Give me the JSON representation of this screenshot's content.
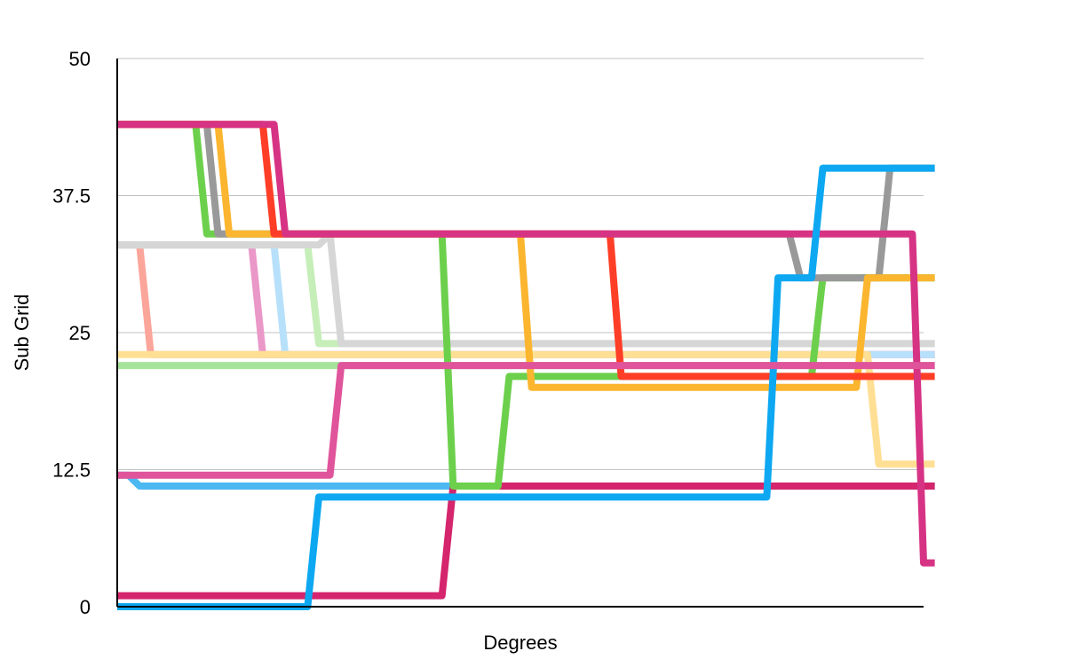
{
  "chart_data": {
    "type": "line",
    "title": "",
    "xlabel": "Degrees",
    "ylabel": "Sub Grid",
    "ylim": [
      0,
      50
    ],
    "xlim": [
      0,
      72
    ],
    "yticks": [
      "0",
      "12.5",
      "25",
      "37.5",
      "50"
    ],
    "grid": "horizontal",
    "legend": "none",
    "series": [
      {
        "color": "#4cb8f2",
        "values": [
          12,
          12,
          11,
          11,
          11,
          11,
          11,
          11,
          11,
          11,
          11,
          11,
          11,
          11,
          11,
          11,
          11,
          11,
          11,
          11,
          11,
          11,
          11,
          11,
          11,
          11,
          11,
          11,
          11,
          11,
          11,
          11,
          11,
          11,
          11,
          11,
          11,
          11,
          11,
          11,
          11,
          11,
          11,
          11,
          11,
          11,
          11,
          11,
          11,
          11,
          11,
          11,
          11,
          11,
          11,
          11,
          11,
          11,
          11,
          11,
          11,
          11,
          11,
          11,
          11,
          11,
          11,
          11,
          11,
          11,
          11,
          11,
          11,
          11
        ]
      },
      {
        "color": "#d4256d",
        "values": [
          1,
          1,
          1,
          1,
          1,
          1,
          1,
          1,
          1,
          1,
          1,
          1,
          1,
          1,
          1,
          1,
          1,
          1,
          1,
          1,
          1,
          1,
          1,
          1,
          1,
          1,
          1,
          1,
          1,
          1,
          11,
          11,
          11,
          11,
          11,
          11,
          11,
          11,
          11,
          11,
          11,
          11,
          11,
          11,
          11,
          11,
          11,
          11,
          11,
          11,
          11,
          11,
          11,
          11,
          11,
          11,
          11,
          11,
          11,
          11,
          11,
          11,
          11,
          11,
          11,
          11,
          11,
          11,
          11,
          11,
          11,
          11,
          11,
          11
        ]
      },
      {
        "color": "#fca59a",
        "values": [
          33,
          33,
          33,
          23,
          23,
          23,
          23,
          23,
          23,
          23,
          23,
          23,
          23,
          23,
          23,
          23,
          23,
          23,
          23,
          23,
          23,
          23,
          23,
          23,
          23,
          23,
          23,
          23,
          23,
          23,
          23,
          23,
          23,
          23,
          23,
          23,
          23,
          23,
          23,
          23,
          23,
          23,
          23,
          23,
          23,
          23,
          23,
          23,
          23,
          23,
          23,
          23,
          23,
          23,
          23,
          23,
          23,
          23,
          23,
          23,
          23,
          23,
          23,
          23,
          23,
          23,
          23,
          23,
          23,
          23,
          23,
          23,
          23,
          23
        ]
      },
      {
        "color": "#ea98c8",
        "values": [
          33,
          33,
          33,
          33,
          33,
          33,
          33,
          33,
          33,
          33,
          33,
          33,
          33,
          23,
          23,
          23,
          23,
          23,
          23,
          23,
          23,
          23,
          23,
          23,
          23,
          23,
          23,
          23,
          23,
          23,
          23,
          23,
          23,
          23,
          23,
          23,
          23,
          23,
          23,
          23,
          23,
          23,
          23,
          23,
          23,
          23,
          23,
          23,
          23,
          23,
          23,
          23,
          23,
          23,
          23,
          23,
          23,
          23,
          23,
          23,
          23,
          23,
          23,
          23,
          23,
          23,
          23,
          23,
          23,
          23,
          23,
          23,
          23,
          23
        ]
      },
      {
        "color": "#b7e0fb",
        "values": [
          33,
          33,
          33,
          33,
          33,
          33,
          33,
          33,
          33,
          33,
          33,
          33,
          33,
          33,
          33,
          23,
          23,
          23,
          23,
          23,
          23,
          23,
          23,
          23,
          23,
          23,
          23,
          23,
          23,
          23,
          23,
          23,
          23,
          23,
          23,
          23,
          23,
          23,
          23,
          23,
          23,
          23,
          23,
          23,
          23,
          23,
          23,
          23,
          23,
          23,
          23,
          23,
          23,
          23,
          23,
          23,
          23,
          23,
          23,
          23,
          23,
          23,
          23,
          23,
          23,
          23,
          23,
          23,
          23,
          23,
          23,
          23,
          23,
          23
        ]
      },
      {
        "color": "#c6eeb8",
        "values": [
          33,
          33,
          33,
          33,
          33,
          33,
          33,
          33,
          33,
          33,
          33,
          33,
          33,
          33,
          33,
          33,
          33,
          33,
          24,
          24,
          24,
          24,
          24,
          24,
          24,
          24,
          24,
          24,
          24,
          24,
          24,
          24,
          24,
          24,
          24,
          24,
          24,
          24,
          24,
          24,
          24,
          24,
          24,
          24,
          24,
          24,
          24,
          24,
          24,
          24,
          24,
          24,
          24,
          24,
          24,
          24,
          24,
          24,
          24,
          24,
          24,
          24,
          24,
          24,
          24,
          24,
          24,
          24,
          24,
          24,
          24,
          24,
          24,
          24
        ]
      },
      {
        "color": "#d6d6d6",
        "values": [
          33,
          33,
          33,
          33,
          33,
          33,
          33,
          33,
          33,
          33,
          33,
          33,
          33,
          33,
          33,
          33,
          33,
          33,
          33,
          34,
          24,
          24,
          24,
          24,
          24,
          24,
          24,
          24,
          24,
          24,
          24,
          24,
          24,
          24,
          24,
          24,
          24,
          24,
          24,
          24,
          24,
          24,
          24,
          24,
          24,
          24,
          24,
          24,
          24,
          24,
          24,
          24,
          24,
          24,
          24,
          24,
          24,
          24,
          24,
          24,
          24,
          24,
          24,
          24,
          24,
          24,
          24,
          24,
          24,
          24,
          24,
          24,
          24,
          24
        ]
      },
      {
        "color": "#ffdf94",
        "values": [
          23,
          23,
          23,
          23,
          23,
          23,
          23,
          23,
          23,
          23,
          23,
          23,
          23,
          23,
          23,
          23,
          23,
          23,
          23,
          23,
          23,
          23,
          23,
          23,
          23,
          23,
          23,
          23,
          23,
          23,
          23,
          23,
          23,
          23,
          23,
          23,
          23,
          23,
          23,
          23,
          23,
          23,
          23,
          23,
          23,
          23,
          23,
          23,
          23,
          23,
          23,
          23,
          23,
          23,
          23,
          23,
          23,
          23,
          23,
          23,
          23,
          23,
          23,
          23,
          23,
          23,
          23,
          23,
          13,
          13,
          13,
          13,
          13,
          13
        ]
      },
      {
        "color": "#a6e39a",
        "values": [
          22,
          22,
          22,
          22,
          22,
          22,
          22,
          22,
          22,
          22,
          22,
          22,
          22,
          22,
          22,
          22,
          22,
          22,
          22,
          22,
          22,
          22,
          22,
          22,
          22,
          22,
          22,
          22,
          22,
          22,
          22,
          22,
          22,
          22,
          22,
          22,
          22,
          22,
          22,
          22,
          22,
          22,
          22,
          22,
          22,
          22,
          22,
          22,
          22,
          22,
          22,
          22,
          22,
          22,
          22,
          22,
          22,
          22,
          22,
          22,
          22,
          22,
          22,
          22,
          22,
          22,
          22,
          22,
          22,
          22,
          22,
          22,
          22,
          22
        ]
      },
      {
        "color": "#6cd04c",
        "values": [
          44,
          44,
          44,
          44,
          44,
          44,
          44,
          44,
          34,
          34,
          34,
          34,
          34,
          34,
          34,
          34,
          34,
          34,
          34,
          34,
          34,
          34,
          34,
          34,
          34,
          34,
          34,
          34,
          34,
          34,
          11,
          11,
          11,
          11,
          11,
          21,
          21,
          21,
          21,
          21,
          21,
          21,
          21,
          21,
          21,
          21,
          21,
          21,
          21,
          21,
          21,
          21,
          21,
          21,
          21,
          21,
          21,
          21,
          21,
          21,
          21,
          21,
          21,
          30,
          30,
          30,
          30,
          30,
          30,
          30,
          30,
          30,
          30,
          30
        ]
      },
      {
        "color": "#999999",
        "values": [
          44,
          44,
          44,
          44,
          44,
          44,
          44,
          44,
          44,
          34,
          34,
          34,
          34,
          34,
          34,
          34,
          34,
          34,
          34,
          34,
          34,
          34,
          34,
          34,
          34,
          34,
          34,
          34,
          34,
          34,
          34,
          34,
          34,
          34,
          34,
          34,
          34,
          34,
          34,
          34,
          34,
          34,
          34,
          34,
          34,
          34,
          34,
          34,
          34,
          34,
          34,
          34,
          34,
          34,
          34,
          34,
          34,
          34,
          34,
          34,
          34,
          30,
          30,
          30,
          30,
          30,
          30,
          30,
          30,
          40,
          40,
          40,
          40,
          40
        ]
      },
      {
        "color": "#fbb52f",
        "values": [
          44,
          44,
          44,
          44,
          44,
          44,
          44,
          44,
          44,
          44,
          34,
          34,
          34,
          34,
          34,
          34,
          34,
          34,
          34,
          34,
          34,
          34,
          34,
          34,
          34,
          34,
          34,
          34,
          34,
          34,
          34,
          34,
          34,
          34,
          34,
          34,
          34,
          20,
          20,
          20,
          20,
          20,
          20,
          20,
          20,
          20,
          20,
          20,
          20,
          20,
          20,
          20,
          20,
          20,
          20,
          20,
          20,
          20,
          20,
          20,
          20,
          20,
          20,
          20,
          20,
          20,
          20,
          30,
          30,
          30,
          30,
          30,
          30,
          30
        ]
      },
      {
        "color": "#ff3e27",
        "values": [
          44,
          44,
          44,
          44,
          44,
          44,
          44,
          44,
          44,
          44,
          44,
          44,
          44,
          44,
          34,
          34,
          34,
          34,
          34,
          34,
          34,
          34,
          34,
          34,
          34,
          34,
          34,
          34,
          34,
          34,
          34,
          34,
          34,
          34,
          34,
          34,
          34,
          34,
          34,
          34,
          34,
          34,
          34,
          34,
          34,
          21,
          21,
          21,
          21,
          21,
          21,
          21,
          21,
          21,
          21,
          21,
          21,
          21,
          21,
          21,
          21,
          21,
          21,
          21,
          21,
          21,
          21,
          21,
          21,
          21,
          21,
          21,
          21,
          21
        ]
      },
      {
        "color": "#d63384",
        "values": [
          44,
          44,
          44,
          44,
          44,
          44,
          44,
          44,
          44,
          44,
          44,
          44,
          44,
          44,
          44,
          34,
          34,
          34,
          34,
          34,
          34,
          34,
          34,
          34,
          34,
          34,
          34,
          34,
          34,
          34,
          34,
          34,
          34,
          34,
          34,
          34,
          34,
          34,
          34,
          34,
          34,
          34,
          34,
          34,
          34,
          34,
          34,
          34,
          34,
          34,
          34,
          34,
          34,
          34,
          34,
          34,
          34,
          34,
          34,
          34,
          34,
          34,
          34,
          34,
          34,
          34,
          34,
          34,
          34,
          34,
          34,
          34,
          4,
          4
        ]
      },
      {
        "color": "#0da8f1",
        "values": [
          0,
          0,
          0,
          0,
          0,
          0,
          0,
          0,
          0,
          0,
          0,
          0,
          0,
          0,
          0,
          0,
          0,
          0,
          10,
          10,
          10,
          10,
          10,
          10,
          10,
          10,
          10,
          10,
          10,
          10,
          10,
          10,
          10,
          10,
          10,
          10,
          10,
          10,
          10,
          10,
          10,
          10,
          10,
          10,
          10,
          10,
          10,
          10,
          10,
          10,
          10,
          10,
          10,
          10,
          10,
          10,
          10,
          10,
          10,
          30,
          30,
          30,
          30,
          40,
          40,
          40,
          40,
          40,
          40,
          40,
          40,
          40,
          40,
          40
        ]
      },
      {
        "color": "#e0549b",
        "values": [
          12,
          12,
          12,
          12,
          12,
          12,
          12,
          12,
          12,
          12,
          12,
          12,
          12,
          12,
          12,
          12,
          12,
          12,
          12,
          12,
          22,
          22,
          22,
          22,
          22,
          22,
          22,
          22,
          22,
          22,
          22,
          22,
          22,
          22,
          22,
          22,
          22,
          22,
          22,
          22,
          22,
          22,
          22,
          22,
          22,
          22,
          22,
          22,
          22,
          22,
          22,
          22,
          22,
          22,
          22,
          22,
          22,
          22,
          22,
          22,
          22,
          22,
          22,
          22,
          22,
          22,
          22,
          22,
          22,
          22,
          22,
          22,
          22,
          22
        ]
      }
    ]
  }
}
